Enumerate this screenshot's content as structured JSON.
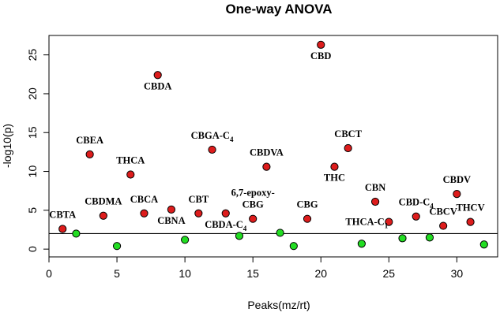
{
  "chart_data": {
    "type": "scatter",
    "title": "One-way ANOVA",
    "xlabel": "Peaks(mz/rt)",
    "ylabel": "-log10(p)",
    "xlim": [
      0,
      33
    ],
    "ylim": [
      -1,
      27.5
    ],
    "xticks": [
      0,
      5,
      10,
      15,
      20,
      25,
      30
    ],
    "yticks": [
      0,
      5,
      10,
      15,
      20,
      25
    ],
    "threshold": 2,
    "colors": {
      "significant": "#dd1c1c",
      "nonsignificant": "#22dd22",
      "outline": "#000000"
    },
    "points": [
      {
        "x": 1,
        "y": 2.6,
        "significant": true,
        "label": "CBTA",
        "sub": ""
      },
      {
        "x": 2,
        "y": 2.0,
        "significant": false,
        "label": "",
        "sub": ""
      },
      {
        "x": 3,
        "y": 12.2,
        "significant": true,
        "label": "CBEA",
        "sub": ""
      },
      {
        "x": 4,
        "y": 4.3,
        "significant": true,
        "label": "CBDMA",
        "sub": ""
      },
      {
        "x": 5,
        "y": 0.4,
        "significant": false,
        "label": "",
        "sub": ""
      },
      {
        "x": 6,
        "y": 9.6,
        "significant": true,
        "label": "THCA",
        "sub": ""
      },
      {
        "x": 7,
        "y": 4.6,
        "significant": true,
        "label": "CBCA",
        "sub": ""
      },
      {
        "x": 8,
        "y": 22.4,
        "significant": true,
        "label": "CBDA",
        "sub": ""
      },
      {
        "x": 9,
        "y": 5.1,
        "significant": true,
        "label": "CBNA",
        "sub": ""
      },
      {
        "x": 10,
        "y": 1.2,
        "significant": false,
        "label": "",
        "sub": ""
      },
      {
        "x": 11,
        "y": 4.6,
        "significant": true,
        "label": "CBT",
        "sub": ""
      },
      {
        "x": 12,
        "y": 12.8,
        "significant": true,
        "label": "CBGA-C",
        "sub": "4"
      },
      {
        "x": 13,
        "y": 4.6,
        "significant": true,
        "label": "CBDA-C",
        "sub": "4"
      },
      {
        "x": 14,
        "y": 1.7,
        "significant": false,
        "label": "",
        "sub": ""
      },
      {
        "x": 15,
        "y": 3.9,
        "significant": true,
        "label": "CBG",
        "sub": "",
        "label2": "6,7-epoxy-"
      },
      {
        "x": 16,
        "y": 10.6,
        "significant": true,
        "label": "CBDVA",
        "sub": ""
      },
      {
        "x": 17,
        "y": 2.1,
        "significant": false,
        "label": "",
        "sub": ""
      },
      {
        "x": 18,
        "y": 0.4,
        "significant": false,
        "label": "",
        "sub": ""
      },
      {
        "x": 19,
        "y": 3.9,
        "significant": true,
        "label": "CBG",
        "sub": ""
      },
      {
        "x": 20,
        "y": 26.3,
        "significant": true,
        "label": "CBD",
        "sub": ""
      },
      {
        "x": 21,
        "y": 10.6,
        "significant": true,
        "label": "THC",
        "sub": ""
      },
      {
        "x": 22,
        "y": 13.0,
        "significant": true,
        "label": "CBCT",
        "sub": ""
      },
      {
        "x": 23,
        "y": 0.7,
        "significant": false,
        "label": "",
        "sub": ""
      },
      {
        "x": 24,
        "y": 6.1,
        "significant": true,
        "label": "CBN",
        "sub": ""
      },
      {
        "x": 25,
        "y": 3.5,
        "significant": true,
        "label": "THCA-C",
        "sub": "1"
      },
      {
        "x": 26,
        "y": 1.4,
        "significant": false,
        "label": "",
        "sub": ""
      },
      {
        "x": 27,
        "y": 4.2,
        "significant": true,
        "label": "CBD-C",
        "sub": "4"
      },
      {
        "x": 28,
        "y": 1.5,
        "significant": false,
        "label": "",
        "sub": ""
      },
      {
        "x": 29,
        "y": 3.0,
        "significant": true,
        "label": "CBCV",
        "sub": ""
      },
      {
        "x": 30,
        "y": 7.1,
        "significant": true,
        "label": "CBDV",
        "sub": ""
      },
      {
        "x": 31,
        "y": 3.5,
        "significant": true,
        "label": "THCV",
        "sub": ""
      },
      {
        "x": 32,
        "y": 0.6,
        "significant": false,
        "label": "",
        "sub": ""
      }
    ]
  }
}
